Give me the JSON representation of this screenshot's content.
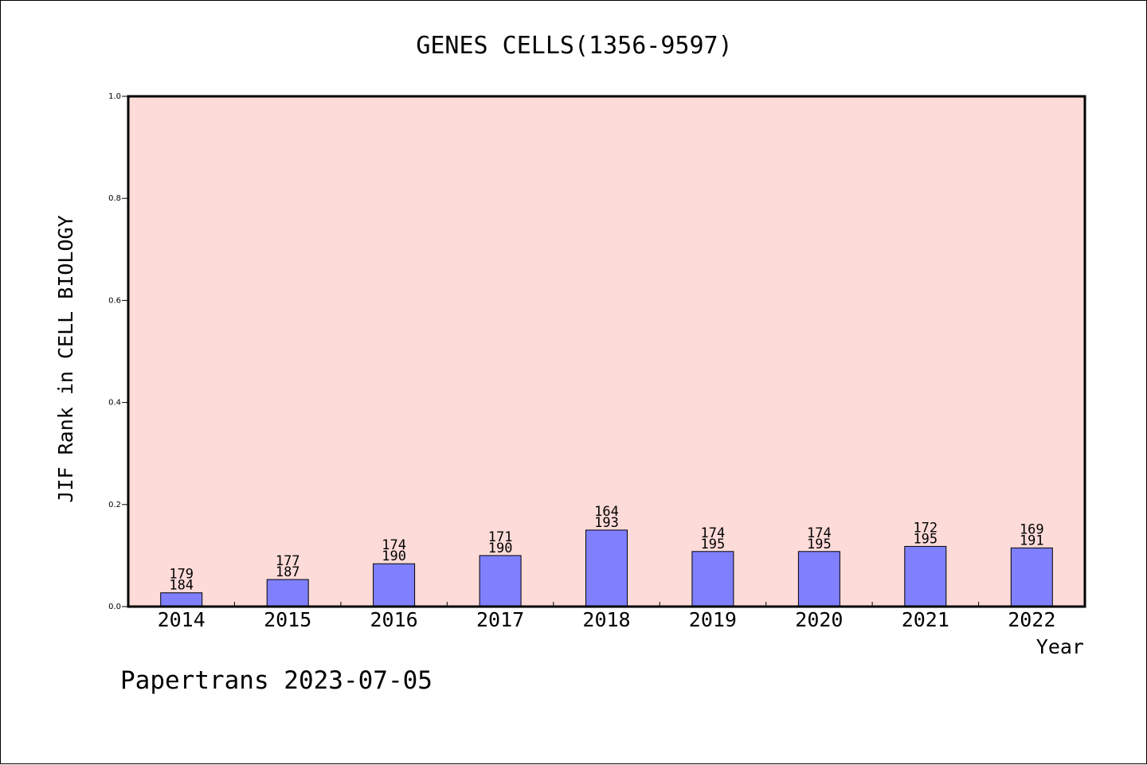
{
  "chart_data": {
    "type": "bar",
    "title": "GENES CELLS(1356-9597)",
    "xlabel": "Year",
    "ylabel": "JIF Rank in CELL BIOLOGY",
    "categories": [
      "2014",
      "2015",
      "2016",
      "2017",
      "2018",
      "2019",
      "2020",
      "2021",
      "2022"
    ],
    "values": [
      0.027,
      0.053,
      0.084,
      0.1,
      0.15,
      0.108,
      0.108,
      0.118,
      0.115
    ],
    "rank": [
      179,
      177,
      174,
      171,
      164,
      174,
      174,
      172,
      169
    ],
    "total": [
      184,
      187,
      190,
      190,
      193,
      195,
      195,
      195,
      191
    ],
    "ylim": [
      0,
      1.0
    ],
    "yticks": [
      "0.0",
      "0.2",
      "0.4",
      "0.6",
      "0.8",
      "1.0"
    ],
    "grid": false,
    "colors": {
      "bar": "#8080ff",
      "plot_background": "#fddbd8",
      "axis": "#000000"
    }
  },
  "footer": "Papertrans 2023-07-05"
}
